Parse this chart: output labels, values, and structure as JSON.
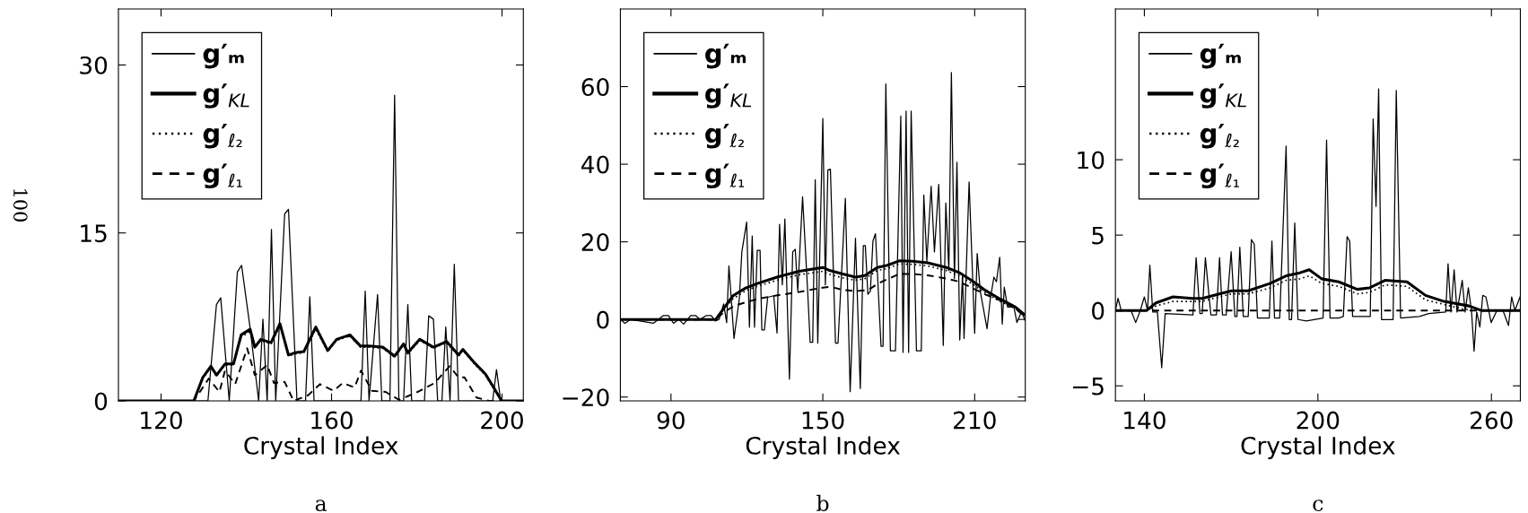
{
  "chart_data": [
    {
      "type": "line",
      "title": "a",
      "xlabel": "Crystal Index",
      "ylabel": "100",
      "xlim": [
        110,
        205
      ],
      "ylim": [
        0,
        35
      ],
      "xticks": [
        120,
        160,
        200
      ],
      "yticks": [
        0,
        15,
        30
      ],
      "legend": "top left",
      "series": [
        {
          "name": "g′ₘ",
          "color": "#000000",
          "line_style": "solid",
          "x": [
            110,
            128,
            131,
            133.0,
            134.0,
            136.0,
            137.9,
            138.9,
            140.9,
            142.9,
            143.9,
            144.9,
            145.9,
            146.9,
            149.0,
            149.9,
            151.9,
            153.9,
            154.9,
            155.9,
            166.9,
            167.9,
            168.8,
            170.8,
            171.8,
            173.7,
            174.8,
            175.8,
            176.9,
            177.9,
            178.8,
            181.8,
            182.8,
            183.9,
            184.9,
            185.9,
            186.8,
            187.8,
            188.8,
            189.8,
            197.8,
            198.7,
            199.7,
            205
          ],
          "values": [
            0,
            0,
            0,
            8.6,
            9.2,
            0,
            11.5,
            12.1,
            6.5,
            0,
            7.3,
            0,
            15.3,
            0,
            16.7,
            17.1,
            0,
            0,
            9.3,
            0,
            0,
            9.8,
            0,
            9.5,
            0,
            0,
            27.3,
            0,
            0,
            8.6,
            0,
            0,
            7.6,
            7.3,
            0,
            0,
            6.6,
            0,
            12.2,
            0,
            0,
            2.8,
            0,
            0
          ]
        },
        {
          "name": "g′$_{KL}$",
          "color": "#000000",
          "line_style": "solid",
          "x": [
            110,
            127.7,
            129.8,
            131.7,
            133.0,
            135.0,
            137.0,
            138.8,
            140.9,
            142.0,
            143.4,
            145.8,
            147.9,
            149.9,
            151.4,
            153.5,
            156.3,
            159.1,
            161.2,
            164.3,
            166.8,
            168.8,
            172.0,
            174.8,
            176.9,
            177.9,
            180.7,
            183.9,
            187.0,
            189.8,
            190.8,
            193.3,
            196.1,
            198.2,
            199.9,
            205
          ],
          "values": [
            0,
            0,
            2.1,
            3.1,
            2.3,
            3.3,
            3.3,
            5.9,
            6.4,
            4.8,
            5.5,
            5.2,
            6.9,
            4.1,
            4.3,
            4.4,
            6.6,
            4.5,
            5.5,
            5.9,
            4.9,
            4.9,
            4.8,
            4.0,
            5.1,
            4.3,
            5.5,
            4.8,
            5.3,
            4.1,
            4.6,
            3.5,
            2.4,
            1.1,
            0,
            0
          ]
        },
        {
          "name": "g′$_{ℓ₂}$",
          "color": "#000000",
          "line_style": "dotted",
          "x": [
            110,
            127.7,
            129.8,
            131.7,
            133.0,
            135.0,
            137.0,
            138.8,
            140.9,
            142.0,
            143.4,
            145.8,
            147.9,
            149.9,
            151.4,
            153.5,
            156.3,
            159.1,
            161.2,
            164.3,
            166.8,
            168.8,
            172.0,
            174.8,
            176.9,
            177.9,
            180.7,
            183.9,
            187.0,
            189.8,
            190.8,
            193.3,
            196.1,
            198.2,
            199.9,
            205
          ],
          "values": [
            0,
            0,
            2.0,
            3.0,
            2.2,
            3.2,
            3.2,
            5.7,
            6.2,
            4.7,
            5.4,
            5.1,
            6.7,
            4.0,
            4.2,
            4.3,
            6.4,
            4.4,
            5.4,
            5.8,
            4.8,
            4.8,
            4.7,
            3.9,
            5.0,
            4.2,
            5.4,
            4.7,
            5.2,
            4.0,
            4.5,
            3.4,
            2.3,
            1.0,
            0,
            0
          ]
        },
        {
          "name": "g′$_{ℓ₁}$",
          "color": "#000000",
          "line_style": "dashed",
          "x": [
            110,
            127.7,
            131.2,
            133.7,
            135.0,
            137.4,
            140.2,
            142.0,
            144.9,
            146.5,
            149.0,
            151.1,
            154.5,
            157.3,
            160.5,
            162.6,
            165.4,
            166.9,
            169.5,
            172.7,
            175.8,
            179.7,
            184.2,
            187.7,
            189.8,
            191.2,
            194.0,
            197,
            205
          ],
          "values": [
            0,
            0,
            2.0,
            0.8,
            2.7,
            1.5,
            4.7,
            2.3,
            3.2,
            1.6,
            1.7,
            0,
            0.5,
            1.5,
            0.9,
            1.6,
            1.2,
            2.7,
            0.9,
            0.8,
            0.1,
            0.7,
            1.6,
            3.1,
            2.1,
            2.1,
            0.3,
            0,
            0
          ]
        }
      ]
    },
    {
      "type": "line",
      "title": "b",
      "xlabel": "Crystal Index",
      "xlim": [
        70,
        230
      ],
      "ylim": [
        -21,
        80
      ],
      "xticks": [
        90,
        150,
        210
      ],
      "yticks": [
        -20,
        0,
        20,
        40,
        60
      ],
      "legend": "top left",
      "series": [
        {
          "name": "g′ₘ",
          "color": "#000000",
          "line_style": "solid",
          "x": [
            70,
            71.8,
            74,
            83,
            85,
            87,
            89,
            91,
            93,
            95,
            97.8,
            99.7,
            101.5,
            104,
            105.9,
            107.5,
            109,
            110.8,
            112,
            112.9,
            114.9,
            117,
            118.0,
            119.9,
            121.0,
            122.1,
            123.0,
            124.1,
            125.2,
            125.9,
            126.9,
            128.2,
            130.6,
            131.9,
            132.9,
            134.0,
            135.0,
            136.8,
            138.1,
            139.1,
            140.1,
            142.0,
            144.0,
            145.0,
            146.0,
            147.0,
            148.0,
            150.0,
            151.0,
            152.0,
            153.0,
            155.0,
            156.0,
            158.9,
            160.8,
            162.9,
            164.8,
            166.0,
            166.8,
            167.8,
            168.8,
            169.8,
            170.8,
            171.9,
            173.0,
            173.8,
            174.9,
            176.7,
            178.7,
            180.8,
            181.7,
            182.9,
            183.9,
            184.9,
            187.0,
            188.9,
            189.9,
            191.1,
            192.8,
            194.1,
            195.8,
            197.6,
            198.6,
            199.8,
            200.8,
            202.0,
            203.0,
            204.1,
            205.2,
            205.8,
            207.8,
            210.0,
            211.0,
            212.2,
            214.9,
            216.1,
            217.6,
            218.6,
            219.9,
            220.9,
            221.7,
            223.0,
            225.5,
            226.7,
            228.5,
            230
          ],
          "values": [
            0,
            -1,
            0,
            -1,
            0,
            1,
            1,
            -1,
            0,
            -1.2,
            1,
            1,
            0,
            1,
            1,
            -0.4,
            0,
            4,
            -0.8,
            13.8,
            -4.9,
            5.3,
            17.4,
            25.1,
            -2.0,
            21.5,
            -2.0,
            17.8,
            17.8,
            -2.7,
            -2.7,
            5.7,
            6.1,
            -3.5,
            24.5,
            8.9,
            25.9,
            -15.4,
            17.4,
            18.1,
            7.3,
            31.6,
            7.3,
            -5.9,
            -5.9,
            36.0,
            -6.1,
            51.8,
            8.9,
            38.5,
            38.7,
            -6.1,
            -6.1,
            31.2,
            -18.6,
            20.9,
            -17.8,
            19.0,
            19.0,
            6.5,
            7.3,
            20.2,
            22.1,
            null,
            -6.9,
            -6.9,
            60.7,
            -8.1,
            -8.1,
            52.4,
            -8.5,
            53.7,
            -8.5,
            53.7,
            -8.1,
            -8.1,
            32.1,
            15.0,
            34.3,
            17.4,
            34.8,
            -6.7,
            30.0,
            12.6,
            63.6,
            10.5,
            40.5,
            -5.3,
            11.7,
            -4.9,
            35.4,
            -3.6,
            17.0,
            7.3,
            -2.4,
            4.9,
            10.9,
            9.7,
            16.0,
            -1.2,
            8.3,
            3.2,
            3.2,
            -0.8,
            2.0,
            -0.4
          ]
        },
        {
          "name": "g′$_{KL}$",
          "color": "#000000",
          "line_style": "solid",
          "x": [
            70,
            107.7,
            110.8,
            114.5,
            119.5,
            124.4,
            131.9,
            140.6,
            150.0,
            152.3,
            157.9,
            162.9,
            166.6,
            171.5,
            175.3,
            180.2,
            185.2,
            191.4,
            198.8,
            203.8,
            208.7,
            213.7,
            219.9,
            226.1,
            229.8
          ],
          "values": [
            0,
            0,
            2.8,
            6.1,
            8.1,
            9.3,
            10.9,
            12.4,
            13.4,
            12.7,
            11.7,
            10.9,
            11.3,
            13.4,
            13.9,
            15.1,
            15.0,
            14.6,
            13.4,
            12.1,
            10.1,
            7.7,
            5.3,
            3.2,
            1.2
          ]
        },
        {
          "name": "g′$_{ℓ₂}$",
          "color": "#000000",
          "line_style": "dotted",
          "x": [
            70,
            107.7,
            110.8,
            114.5,
            119.5,
            124.4,
            131.9,
            140.6,
            150.0,
            152.3,
            157.9,
            162.9,
            166.6,
            171.5,
            175.3,
            180.2,
            185.2,
            191.4,
            198.8,
            203.8,
            208.7,
            213.7,
            219.9,
            226.1,
            229.8
          ],
          "values": [
            0,
            0,
            2.4,
            5.3,
            7.4,
            8.6,
            10.1,
            11.5,
            12.4,
            11.7,
            10.7,
            10.1,
            10.5,
            12.6,
            13.1,
            14.3,
            14.2,
            13.8,
            12.6,
            11.3,
            9.3,
            7.0,
            4.7,
            2.8,
            0.9
          ]
        },
        {
          "name": "g′$_{ℓ₁}$",
          "color": "#000000",
          "line_style": "dashed",
          "x": [
            70,
            107.7,
            110.8,
            115,
            120,
            125,
            132,
            140,
            150,
            153,
            158,
            163,
            168,
            172,
            176,
            180,
            186,
            192,
            199,
            204,
            209,
            214,
            220,
            226,
            229.8
          ],
          "values": [
            0,
            0,
            1.8,
            3.5,
            4.5,
            5.4,
            6.2,
            7.0,
            8.2,
            8.4,
            7.6,
            7.3,
            7.6,
            9.3,
            10.5,
            11.7,
            11.7,
            11.3,
            10.5,
            9.7,
            8.1,
            6.5,
            4.9,
            2.8,
            0.8
          ]
        }
      ]
    },
    {
      "type": "line",
      "title": "c",
      "xlabel": "Crystal Index",
      "xlim": [
        130,
        270
      ],
      "ylim": [
        -6,
        20
      ],
      "xticks": [
        140,
        200,
        260
      ],
      "yticks": [
        -5,
        0,
        5,
        10
      ],
      "legend": "top left",
      "series": [
        {
          "name": "g′ₘ",
          "color": "#000000",
          "line_style": "solid",
          "x": [
            130,
            130.9,
            132,
            135.4,
            137,
            138.6,
            140,
            141.1,
            141.9,
            142.9,
            144.5,
            146,
            147.2,
            156.8,
            157.9,
            159.2,
            160,
            161.1,
            163,
            164.9,
            166,
            167,
            168.3,
            170,
            171.3,
            172,
            173,
            174.2,
            175.9,
            177,
            178,
            179.1,
            183.2,
            184.1,
            185,
            186.8,
            189,
            190.1,
            190.9,
            192,
            193.1,
            196,
            201.8,
            203,
            204.2,
            205.1,
            206,
            207.2,
            208.8,
            210.1,
            211,
            212,
            215,
            216,
            217.1,
            218.1,
            219.1,
            220.1,
            221,
            222,
            226,
            227.1,
            228.6,
            235.1,
            237,
            238.3,
            244.2,
            245,
            246,
            247.1,
            248.1,
            249.9,
            250.9,
            252,
            253.1,
            254,
            254.9,
            256,
            257,
            258.1,
            259.9,
            261.9,
            264,
            265.9,
            267,
            268.1,
            269.9
          ],
          "values": [
            0,
            0.8,
            0,
            0,
            -0.8,
            0,
            0.9,
            0,
            3.0,
            -0.1,
            -0.1,
            -3.8,
            -0.2,
            -0.3,
            3.5,
            -0.2,
            -0.2,
            3.5,
            -0.3,
            -0.3,
            3.5,
            -0.3,
            -0.3,
            3.9,
            -0.4,
            -0.4,
            4.2,
            -0.4,
            -0.4,
            4.7,
            4.4,
            -0.5,
            -0.5,
            4.6,
            -0.5,
            -0.5,
            10.9,
            -0.6,
            -0.6,
            5.8,
            -0.6,
            -0.7,
            -0.5,
            11.3,
            -0.5,
            -0.5,
            null,
            -0.5,
            -0.4,
            4.9,
            4.6,
            -0.4,
            -0.4,
            null,
            -0.4,
            -0.4,
            12.7,
            6.9,
            14.7,
            -0.6,
            -0.6,
            14.6,
            -0.5,
            -0.4,
            null,
            -0.2,
            -0.1,
            3.1,
            -0.1,
            2.7,
            -0.1,
            2.0,
            -0.1,
            1.5,
            0,
            -2.7,
            -0.1,
            -1.1,
            1.0,
            0.9,
            -0.8,
            0,
            0,
            -1.0,
            0.9,
            0,
            0.9
          ]
        },
        {
          "name": "g′$_{KL}$",
          "color": "#000000",
          "line_style": "solid",
          "x": [
            130,
            140.8,
            144,
            149.9,
            156.8,
            160,
            165.9,
            170.2,
            175.9,
            183.6,
            189,
            193.8,
            197,
            201.3,
            207.2,
            213.6,
            217.9,
            223.2,
            230.8,
            237.2,
            243.6,
            252.2,
            256.5,
            270
          ],
          "values": [
            0,
            0,
            0.5,
            0.9,
            0.8,
            0.8,
            1.1,
            1.3,
            1.3,
            1.8,
            2.3,
            2.5,
            2.7,
            2.1,
            1.9,
            1.4,
            1.5,
            2.0,
            1.9,
            1.0,
            0.6,
            0.3,
            0,
            0
          ]
        },
        {
          "name": "g′$_{ℓ₂}$",
          "color": "#000000",
          "line_style": "dotted",
          "x": [
            130,
            140.8,
            144,
            149.9,
            156.8,
            160,
            165.9,
            170.2,
            175.9,
            183.6,
            189,
            193.8,
            197,
            201.3,
            207.2,
            213.6,
            217.9,
            223.2,
            230.8,
            237.2,
            243.6,
            250,
            254,
            270
          ],
          "values": [
            0,
            0,
            0.3,
            0.6,
            0.6,
            0.6,
            0.9,
            1.1,
            1.1,
            1.5,
            2.0,
            2.1,
            2.3,
            1.8,
            1.6,
            1.1,
            1.2,
            1.7,
            1.6,
            0.7,
            0.4,
            0.1,
            0,
            0
          ]
        },
        {
          "name": "g′$_{ℓ₁}$",
          "color": "#000000",
          "line_style": "dashed",
          "x": [
            130,
            270
          ],
          "values": [
            0,
            0
          ]
        }
      ]
    }
  ]
}
